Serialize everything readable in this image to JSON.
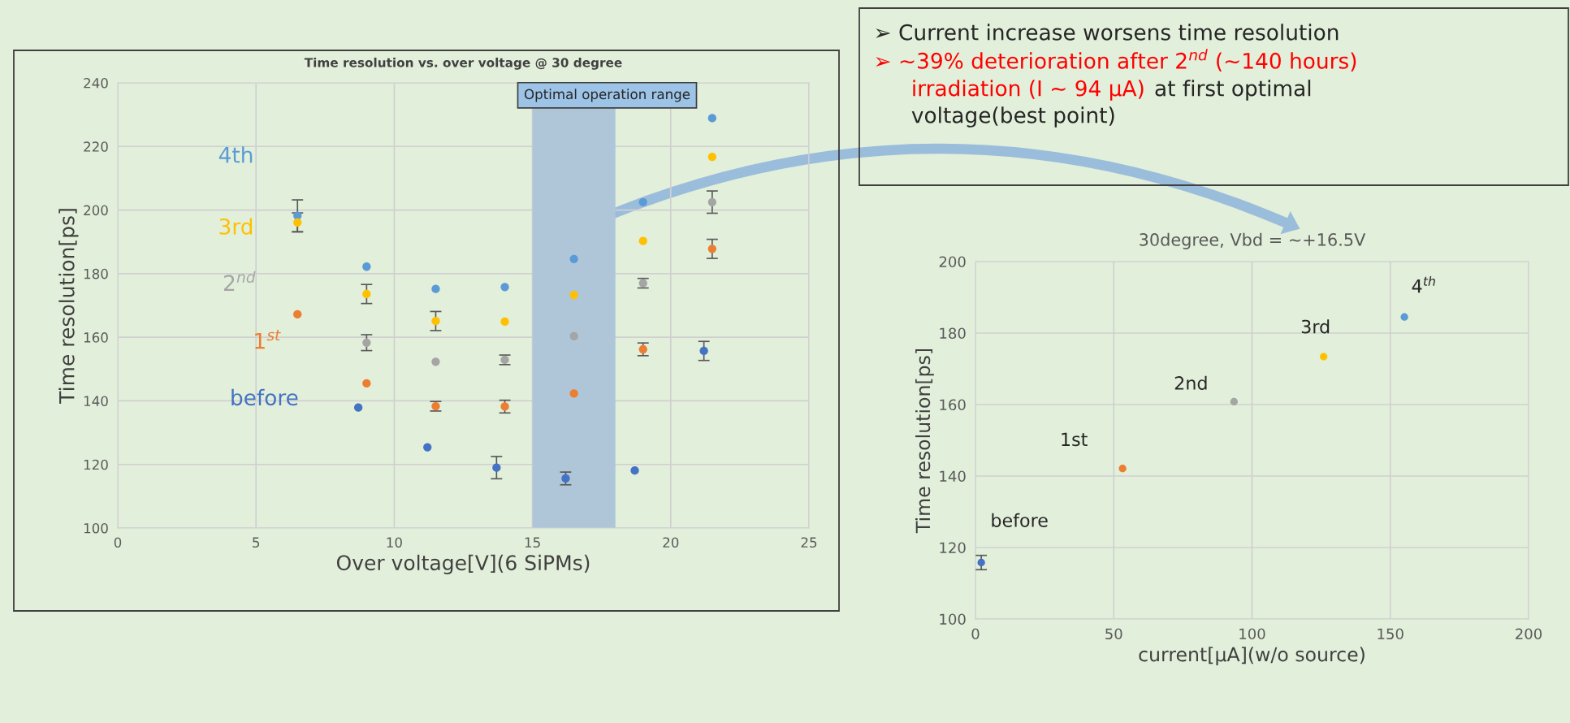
{
  "chart_data": [
    {
      "type": "scatter",
      "title": "Time resolution vs. over voltage @ 30 degree",
      "xlabel": "Over voltage[V](6 SiPMs)",
      "ylabel": "Time resolution[ps]",
      "xlim": [
        0,
        25
      ],
      "xticks": [
        0,
        5,
        10,
        15,
        20,
        25
      ],
      "ylim": [
        100,
        240
      ],
      "yticks": [
        100,
        120,
        140,
        160,
        180,
        200,
        220,
        240
      ],
      "grid": true,
      "marker": "circle",
      "bands": [
        {
          "axis": "x",
          "from": 15,
          "to": 18,
          "label": "Optimal operation range",
          "color": "#aec6d8"
        }
      ],
      "series": [
        {
          "name": "4th",
          "color": "#5b9bd5",
          "x": [
            6.5,
            9,
            11.5,
            14,
            16.5,
            19,
            21.5
          ],
          "values": [
            198.2,
            182.2,
            175.2,
            175.8,
            184.6,
            202.5,
            228.9
          ],
          "errors": [
            5,
            null,
            null,
            null,
            null,
            null,
            null
          ]
        },
        {
          "name": "3rd",
          "color": "#ffc000",
          "x": [
            6.5,
            9,
            11.5,
            14,
            16.5,
            19,
            21.5
          ],
          "values": [
            196.1,
            173.6,
            165.1,
            164.9,
            173.3,
            190.3,
            216.7
          ],
          "errors": [
            3,
            3,
            3,
            null,
            null,
            null,
            null
          ]
        },
        {
          "name": "2$^{nd}$",
          "color": "#a5a5a5",
          "x": [
            9,
            11.5,
            14,
            16.5,
            19,
            21.5
          ],
          "values": [
            158.3,
            152.3,
            152.9,
            160.3,
            177.0,
            202.5
          ],
          "errors": [
            2.5,
            null,
            1.5,
            null,
            1.5,
            3.5
          ]
        },
        {
          "name": "1$^{st}$",
          "color": "#ed7d31",
          "x": [
            6.5,
            9,
            11.5,
            14,
            16.5,
            19,
            21.5
          ],
          "values": [
            167.2,
            145.5,
            138.3,
            138.2,
            142.3,
            156.2,
            187.8
          ],
          "errors": [
            null,
            null,
            1.5,
            2,
            null,
            2,
            3
          ]
        },
        {
          "name": "before",
          "color": "#4472c4",
          "x": [
            8.7,
            11.2,
            13.7,
            16.2,
            18.7,
            21.2
          ],
          "values": [
            137.9,
            125.4,
            119.0,
            115.6,
            118.1,
            155.7
          ],
          "errors": [
            null,
            null,
            3.5,
            2,
            null,
            3
          ]
        }
      ]
    },
    {
      "type": "other",
      "annotations": [
        "➢ Current increase worsens time resolution",
        "➢ ~39% deterioration after 2$^{nd}$ (~140 hours)",
        "irradiation (I ~ 94 μA)",
        "at first optimal",
        "voltage(best point)"
      ]
    },
    {
      "type": "scatter",
      "title": "30degree, Vbd = ~+16.5V",
      "xlabel": "current[μA](w/o source)",
      "ylabel": "Time resolution[ps]",
      "xlim": [
        0,
        200
      ],
      "xticks": [
        0,
        50,
        100,
        150,
        200
      ],
      "ylim": [
        100,
        200
      ],
      "yticks": [
        100,
        120,
        140,
        160,
        180,
        200
      ],
      "grid": true,
      "marker": "circle",
      "series": [
        {
          "name": "before",
          "color": "#4472c4",
          "x": [
            2.1
          ],
          "values": [
            115.8
          ],
          "errors": [
            2
          ]
        },
        {
          "name": "1st",
          "color": "#ed7d31",
          "x": [
            53.2
          ],
          "values": [
            142.1
          ]
        },
        {
          "name": "2nd",
          "color": "#a5a5a5",
          "x": [
            93.5
          ],
          "values": [
            160.8
          ]
        },
        {
          "name": "3rd",
          "color": "#ffc000",
          "x": [
            125.9
          ],
          "values": [
            173.4
          ]
        },
        {
          "name": "4$^{th}$",
          "color": "#5b9bd5",
          "x": [
            155.1
          ],
          "values": [
            184.5
          ]
        }
      ]
    }
  ]
}
